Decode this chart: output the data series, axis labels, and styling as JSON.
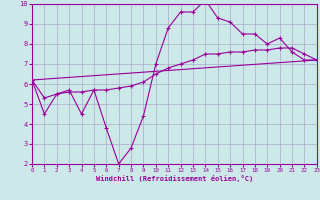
{
  "xlabel": "Windchill (Refroidissement éolien,°C)",
  "background_color": "#cce8e8",
  "grid_color": "#aaaacc",
  "line_color": "#990099",
  "x_all": [
    0,
    1,
    2,
    3,
    4,
    5,
    6,
    7,
    8,
    9,
    10,
    11,
    12,
    13,
    14,
    15,
    16,
    17,
    18,
    19,
    20,
    21,
    22,
    23
  ],
  "line1_y": [
    6.2,
    4.5,
    5.5,
    5.7,
    4.5,
    5.7,
    3.8,
    2.0,
    2.8,
    4.4,
    7.0,
    8.8,
    9.6,
    9.6,
    10.2,
    9.3,
    9.1,
    8.5,
    8.5,
    8.0,
    8.3,
    7.6,
    7.2,
    7.2
  ],
  "line2_y": [
    6.2,
    5.3,
    5.5,
    5.6,
    5.6,
    5.7,
    5.7,
    5.8,
    5.9,
    6.1,
    6.5,
    6.8,
    7.0,
    7.2,
    7.5,
    7.5,
    7.6,
    7.6,
    7.7,
    7.7,
    7.8,
    7.8,
    7.5,
    7.2
  ],
  "line3_x": [
    0,
    23
  ],
  "line3_y": [
    6.2,
    7.2
  ],
  "xlim": [
    0,
    23
  ],
  "ylim": [
    2,
    10
  ],
  "yticks": [
    2,
    3,
    4,
    5,
    6,
    7,
    8,
    9,
    10
  ],
  "xticks": [
    0,
    1,
    2,
    3,
    4,
    5,
    6,
    7,
    8,
    9,
    10,
    11,
    12,
    13,
    14,
    15,
    16,
    17,
    18,
    19,
    20,
    21,
    22,
    23
  ]
}
